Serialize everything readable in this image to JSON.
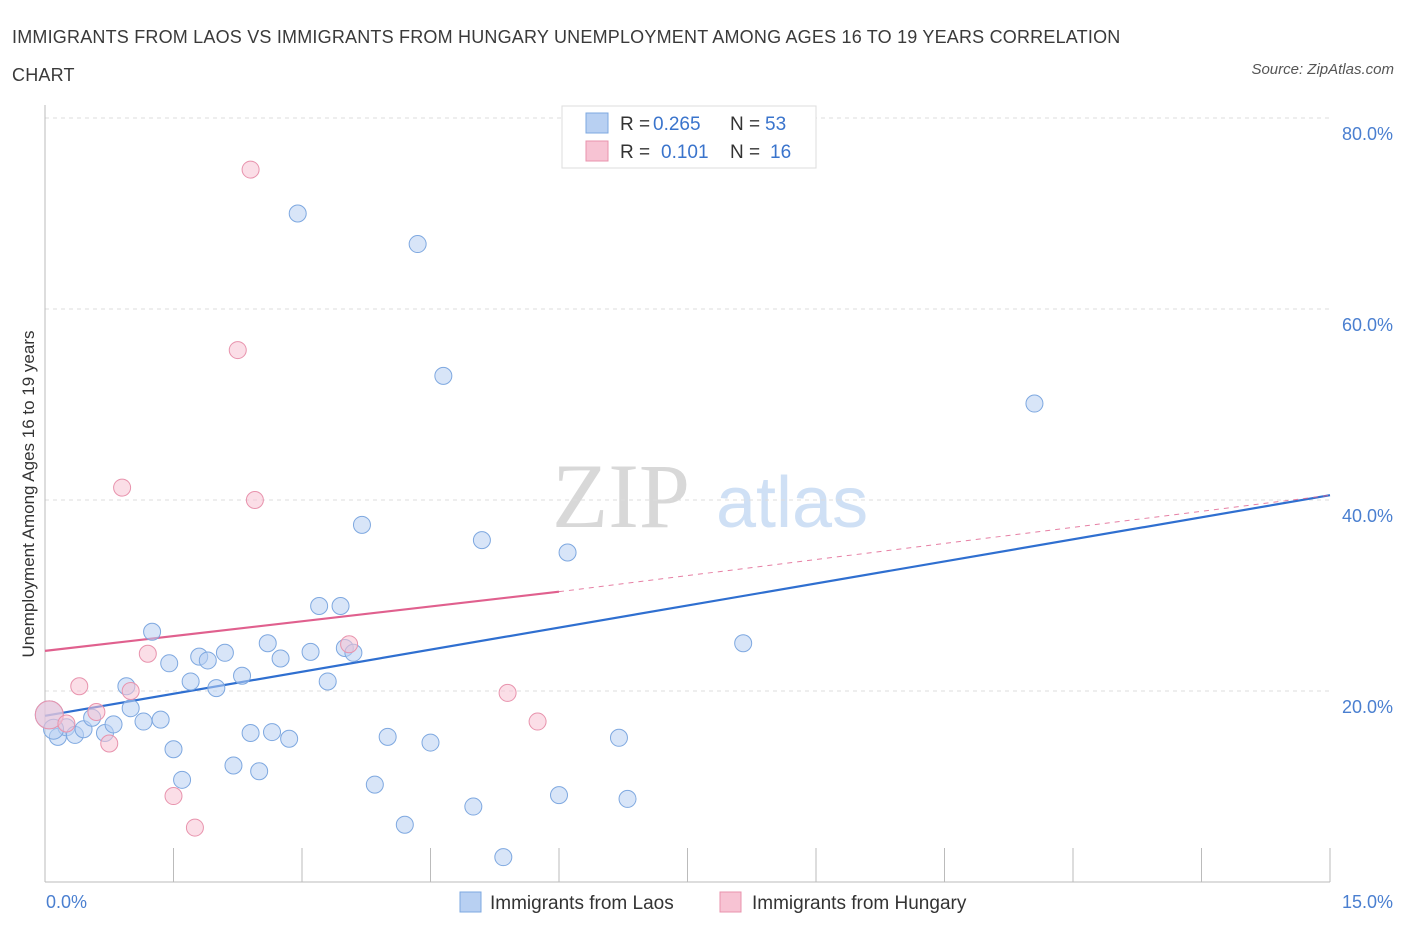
{
  "header": {
    "title": "IMMIGRANTS FROM LAOS VS IMMIGRANTS FROM HUNGARY UNEMPLOYMENT AMONG AGES 16 TO 19 YEARS CORRELATION CHART",
    "source": "Source: ZipAtlas.com"
  },
  "watermark": {
    "zip": "ZIP",
    "atlas": "atlas"
  },
  "legend_top": {
    "rows": [
      {
        "r_label": "R =",
        "r_value": "0.265",
        "n_label": "N =",
        "n_value": "53"
      },
      {
        "r_label": "R =",
        "r_value": "0.101",
        "n_label": "N =",
        "n_value": "16"
      }
    ]
  },
  "colors": {
    "blue_fill": "#b8d0f2",
    "blue_stroke": "#7ea8e0",
    "blue_line": "#2f6fd0",
    "pink_fill": "#f7c3d3",
    "pink_stroke": "#e893ad",
    "pink_line": "#e0608e",
    "grid": "#dddddd",
    "axis": "#bbbbbb",
    "tick_text": "#4a7fd0"
  },
  "chart_data": {
    "type": "scatter",
    "title": "IMMIGRANTS FROM LAOS VS IMMIGRANTS FROM HUNGARY UNEMPLOYMENT AMONG AGES 16 TO 19 YEARS CORRELATION CHART",
    "xlabel": "",
    "ylabel": "Unemployment Among Ages 16 to 19 years",
    "xlim": [
      0,
      15
    ],
    "ylim": [
      0,
      80
    ],
    "x_tick_labels": [
      "0.0%",
      "15.0%"
    ],
    "y_ticks": [
      20,
      40,
      60,
      80
    ],
    "y_tick_labels": [
      "20.0%",
      "40.0%",
      "60.0%",
      "80.0%"
    ],
    "grid": true,
    "legend_position": "top-center",
    "series": [
      {
        "name": "Immigrants from Laos",
        "R": 0.265,
        "N": 53,
        "points": [
          [
            0.05,
            17.5
          ],
          [
            0.15,
            15.2
          ],
          [
            0.25,
            16.2
          ],
          [
            0.35,
            15.4
          ],
          [
            0.45,
            16.0
          ],
          [
            0.55,
            17.2
          ],
          [
            0.7,
            15.6
          ],
          [
            0.8,
            16.5
          ],
          [
            0.95,
            20.5
          ],
          [
            1.0,
            18.2
          ],
          [
            1.15,
            16.8
          ],
          [
            1.25,
            26.2
          ],
          [
            1.35,
            17.0
          ],
          [
            1.45,
            22.9
          ],
          [
            1.5,
            13.9
          ],
          [
            1.6,
            10.7
          ],
          [
            1.7,
            21.0
          ],
          [
            1.8,
            23.6
          ],
          [
            1.9,
            23.2
          ],
          [
            2.0,
            20.3
          ],
          [
            2.1,
            24.0
          ],
          [
            2.2,
            12.2
          ],
          [
            2.3,
            21.6
          ],
          [
            2.4,
            15.6
          ],
          [
            2.5,
            11.6
          ],
          [
            2.6,
            25.0
          ],
          [
            2.65,
            15.7
          ],
          [
            2.75,
            23.4
          ],
          [
            2.85,
            15.0
          ],
          [
            2.95,
            70.0
          ],
          [
            3.1,
            24.1
          ],
          [
            3.2,
            28.9
          ],
          [
            3.3,
            21.0
          ],
          [
            3.45,
            28.9
          ],
          [
            3.5,
            24.5
          ],
          [
            3.6,
            24.0
          ],
          [
            3.7,
            37.4
          ],
          [
            3.85,
            10.2
          ],
          [
            4.0,
            15.2
          ],
          [
            4.2,
            6.0
          ],
          [
            4.35,
            66.8
          ],
          [
            4.5,
            14.6
          ],
          [
            4.65,
            53.0
          ],
          [
            5.0,
            7.9
          ],
          [
            5.1,
            35.8
          ],
          [
            5.35,
            2.6
          ],
          [
            6.0,
            9.1
          ],
          [
            6.1,
            34.5
          ],
          [
            6.7,
            15.1
          ],
          [
            6.8,
            8.7
          ],
          [
            8.15,
            25.0
          ],
          [
            11.55,
            50.1
          ],
          [
            0.1,
            16.0
          ]
        ],
        "trend": {
          "x0": 0,
          "y0": 17.4,
          "x1": 15,
          "y1": 40.5
        }
      },
      {
        "name": "Immigrants from Hungary",
        "R": 0.101,
        "N": 16,
        "points": [
          [
            0.05,
            17.5
          ],
          [
            0.25,
            16.6
          ],
          [
            0.4,
            20.5
          ],
          [
            0.6,
            17.8
          ],
          [
            0.75,
            14.5
          ],
          [
            0.9,
            41.3
          ],
          [
            1.0,
            20.0
          ],
          [
            1.2,
            23.9
          ],
          [
            1.5,
            9.0
          ],
          [
            1.75,
            5.7
          ],
          [
            2.25,
            55.7
          ],
          [
            2.4,
            74.6
          ],
          [
            2.45,
            40.0
          ],
          [
            3.55,
            24.9
          ],
          [
            5.4,
            19.8
          ],
          [
            5.75,
            16.8
          ]
        ],
        "trend_solid": {
          "x0": 0,
          "y0": 24.2,
          "x1": 6.0,
          "y1": 30.4
        },
        "trend_dashed": {
          "x0": 6.0,
          "y0": 30.4,
          "x1": 15,
          "y1": 40.5
        }
      }
    ]
  }
}
